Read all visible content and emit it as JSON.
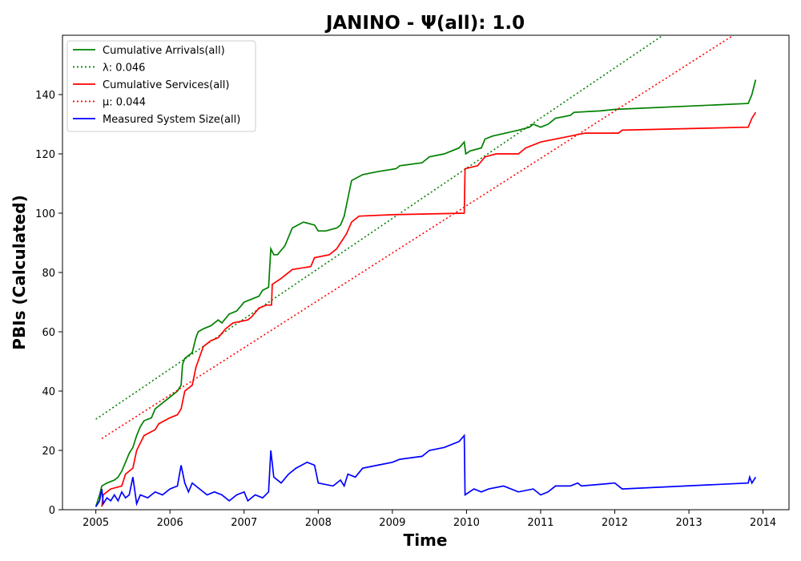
{
  "chart_data": {
    "type": "line",
    "title": "JANINO -  Ψ(all): 1.0",
    "xlabel": "Time",
    "ylabel": "PBIs (Calculated)",
    "xlim": [
      2004.55,
      2014.35
    ],
    "ylim": [
      0,
      160
    ],
    "x_ticks": [
      "2005",
      "2006",
      "2007",
      "2008",
      "2009",
      "2010",
      "2011",
      "2012",
      "2013",
      "2014"
    ],
    "y_ticks": [
      "0",
      "20",
      "40",
      "60",
      "80",
      "100",
      "120",
      "140"
    ],
    "grid": false,
    "legend_position": "top-left",
    "series": [
      {
        "name": "Cumulative Arrivals(all)",
        "color": "#008000",
        "style": "solid",
        "points": [
          [
            2005.0,
            1
          ],
          [
            2005.05,
            5
          ],
          [
            2005.08,
            8
          ],
          [
            2005.15,
            9
          ],
          [
            2005.25,
            10
          ],
          [
            2005.3,
            11
          ],
          [
            2005.35,
            13
          ],
          [
            2005.4,
            16
          ],
          [
            2005.45,
            19
          ],
          [
            2005.5,
            21
          ],
          [
            2005.55,
            25
          ],
          [
            2005.6,
            28
          ],
          [
            2005.65,
            30
          ],
          [
            2005.75,
            31
          ],
          [
            2005.8,
            34
          ],
          [
            2005.9,
            36
          ],
          [
            2006.0,
            38
          ],
          [
            2006.1,
            40
          ],
          [
            2006.15,
            42
          ],
          [
            2006.17,
            49
          ],
          [
            2006.2,
            51
          ],
          [
            2006.3,
            53
          ],
          [
            2006.35,
            58
          ],
          [
            2006.38,
            60
          ],
          [
            2006.45,
            61
          ],
          [
            2006.55,
            62
          ],
          [
            2006.65,
            64
          ],
          [
            2006.7,
            63
          ],
          [
            2006.8,
            66
          ],
          [
            2006.9,
            67
          ],
          [
            2007.0,
            70
          ],
          [
            2007.1,
            71
          ],
          [
            2007.2,
            72
          ],
          [
            2007.25,
            74
          ],
          [
            2007.33,
            75
          ],
          [
            2007.36,
            88
          ],
          [
            2007.4,
            86
          ],
          [
            2007.45,
            86
          ],
          [
            2007.55,
            89
          ],
          [
            2007.65,
            95
          ],
          [
            2007.8,
            97
          ],
          [
            2007.95,
            96
          ],
          [
            2008.0,
            94
          ],
          [
            2008.1,
            94
          ],
          [
            2008.25,
            95
          ],
          [
            2008.3,
            96
          ],
          [
            2008.35,
            99
          ],
          [
            2008.4,
            105
          ],
          [
            2008.45,
            111
          ],
          [
            2008.6,
            113
          ],
          [
            2008.8,
            114
          ],
          [
            2009.05,
            115
          ],
          [
            2009.1,
            116
          ],
          [
            2009.4,
            117
          ],
          [
            2009.5,
            119
          ],
          [
            2009.7,
            120
          ],
          [
            2009.9,
            122
          ],
          [
            2009.97,
            124
          ],
          [
            2009.99,
            120
          ],
          [
            2010.05,
            121
          ],
          [
            2010.2,
            122
          ],
          [
            2010.25,
            125
          ],
          [
            2010.35,
            126
          ],
          [
            2010.7,
            128
          ],
          [
            2010.85,
            129
          ],
          [
            2010.9,
            130
          ],
          [
            2011.0,
            129
          ],
          [
            2011.1,
            130
          ],
          [
            2011.2,
            132
          ],
          [
            2011.4,
            133
          ],
          [
            2011.45,
            134
          ],
          [
            2011.8,
            134.5
          ],
          [
            2012.0,
            135
          ],
          [
            2013.8,
            137
          ],
          [
            2013.85,
            140
          ],
          [
            2013.9,
            145
          ]
        ]
      },
      {
        "name": "λ: 0.046",
        "color": "#008000",
        "style": "dotted",
        "points": [
          [
            2005.0,
            30.5
          ],
          [
            2012.65,
            160
          ]
        ]
      },
      {
        "name": "Cumulative Services(all)",
        "color": "#ff0000",
        "style": "solid",
        "points": [
          [
            2005.08,
            1
          ],
          [
            2005.1,
            5
          ],
          [
            2005.2,
            7
          ],
          [
            2005.35,
            8
          ],
          [
            2005.4,
            12
          ],
          [
            2005.5,
            14
          ],
          [
            2005.55,
            20
          ],
          [
            2005.65,
            25
          ],
          [
            2005.8,
            27
          ],
          [
            2005.85,
            29
          ],
          [
            2006.0,
            31
          ],
          [
            2006.1,
            32
          ],
          [
            2006.15,
            34
          ],
          [
            2006.2,
            40
          ],
          [
            2006.3,
            42
          ],
          [
            2006.35,
            48
          ],
          [
            2006.45,
            55
          ],
          [
            2006.55,
            57
          ],
          [
            2006.65,
            58
          ],
          [
            2006.75,
            61
          ],
          [
            2006.85,
            63
          ],
          [
            2007.05,
            64
          ],
          [
            2007.1,
            65
          ],
          [
            2007.2,
            68
          ],
          [
            2007.3,
            69
          ],
          [
            2007.37,
            69
          ],
          [
            2007.38,
            76
          ],
          [
            2007.5,
            78
          ],
          [
            2007.65,
            81
          ],
          [
            2007.9,
            82
          ],
          [
            2007.95,
            85
          ],
          [
            2008.15,
            86
          ],
          [
            2008.25,
            88
          ],
          [
            2008.38,
            93
          ],
          [
            2008.45,
            97
          ],
          [
            2008.55,
            99
          ],
          [
            2009.0,
            99.5
          ],
          [
            2009.97,
            100
          ],
          [
            2009.98,
            115
          ],
          [
            2010.15,
            116
          ],
          [
            2010.25,
            119
          ],
          [
            2010.4,
            120
          ],
          [
            2010.7,
            120
          ],
          [
            2010.8,
            122
          ],
          [
            2011.0,
            124
          ],
          [
            2011.4,
            126
          ],
          [
            2011.6,
            127
          ],
          [
            2012.05,
            127
          ],
          [
            2012.1,
            128
          ],
          [
            2013.8,
            129
          ],
          [
            2013.85,
            132
          ],
          [
            2013.9,
            134
          ]
        ]
      },
      {
        "name": "μ: 0.044",
        "color": "#ff0000",
        "style": "dotted",
        "points": [
          [
            2005.08,
            24
          ],
          [
            2013.6,
            160
          ]
        ]
      },
      {
        "name": "Measured System Size(all)",
        "color": "#0000ff",
        "style": "solid",
        "points": [
          [
            2005.0,
            1
          ],
          [
            2005.05,
            3
          ],
          [
            2005.08,
            7
          ],
          [
            2005.1,
            2
          ],
          [
            2005.15,
            4
          ],
          [
            2005.2,
            3
          ],
          [
            2005.25,
            5
          ],
          [
            2005.3,
            3
          ],
          [
            2005.35,
            6
          ],
          [
            2005.4,
            4
          ],
          [
            2005.45,
            5
          ],
          [
            2005.5,
            11
          ],
          [
            2005.55,
            2
          ],
          [
            2005.6,
            5
          ],
          [
            2005.7,
            4
          ],
          [
            2005.8,
            6
          ],
          [
            2005.9,
            5
          ],
          [
            2006.0,
            7
          ],
          [
            2006.1,
            8
          ],
          [
            2006.15,
            15
          ],
          [
            2006.2,
            9
          ],
          [
            2006.25,
            6
          ],
          [
            2006.3,
            9
          ],
          [
            2006.4,
            7
          ],
          [
            2006.5,
            5
          ],
          [
            2006.6,
            6
          ],
          [
            2006.7,
            5
          ],
          [
            2006.8,
            3
          ],
          [
            2006.9,
            5
          ],
          [
            2007.0,
            6
          ],
          [
            2007.05,
            3
          ],
          [
            2007.15,
            5
          ],
          [
            2007.25,
            4
          ],
          [
            2007.33,
            6
          ],
          [
            2007.36,
            20
          ],
          [
            2007.4,
            11
          ],
          [
            2007.5,
            9
          ],
          [
            2007.6,
            12
          ],
          [
            2007.7,
            14
          ],
          [
            2007.85,
            16
          ],
          [
            2007.95,
            15
          ],
          [
            2008.0,
            9
          ],
          [
            2008.2,
            8
          ],
          [
            2008.3,
            10
          ],
          [
            2008.35,
            8
          ],
          [
            2008.4,
            12
          ],
          [
            2008.5,
            11
          ],
          [
            2008.6,
            14
          ],
          [
            2008.8,
            15
          ],
          [
            2009.0,
            16
          ],
          [
            2009.1,
            17
          ],
          [
            2009.4,
            18
          ],
          [
            2009.5,
            20
          ],
          [
            2009.7,
            21
          ],
          [
            2009.9,
            23
          ],
          [
            2009.97,
            25
          ],
          [
            2009.98,
            5
          ],
          [
            2010.1,
            7
          ],
          [
            2010.2,
            6
          ],
          [
            2010.3,
            7
          ],
          [
            2010.5,
            8
          ],
          [
            2010.7,
            6
          ],
          [
            2010.9,
            7
          ],
          [
            2011.0,
            5
          ],
          [
            2011.1,
            6
          ],
          [
            2011.2,
            8
          ],
          [
            2011.4,
            8
          ],
          [
            2011.5,
            9
          ],
          [
            2011.55,
            8
          ],
          [
            2012.0,
            9
          ],
          [
            2012.1,
            7
          ],
          [
            2013.8,
            9
          ],
          [
            2013.82,
            11
          ],
          [
            2013.85,
            9
          ],
          [
            2013.9,
            11
          ]
        ]
      }
    ]
  }
}
